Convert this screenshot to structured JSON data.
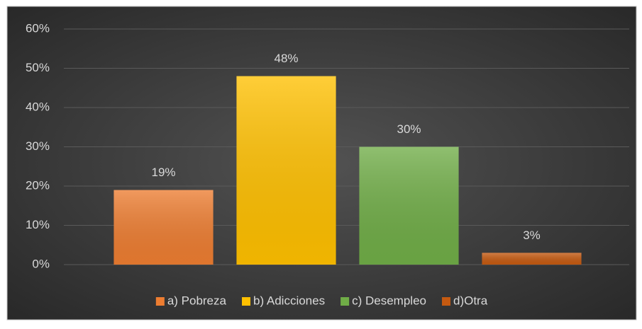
{
  "chart_data": {
    "type": "bar",
    "categories": [
      "a) Pobreza",
      "b) Adicciones",
      "c) Desempleo",
      "d)Otra"
    ],
    "values": [
      19,
      48,
      30,
      3
    ],
    "value_labels": [
      "19%",
      "48%",
      "30%",
      "3%"
    ],
    "colors": [
      "#ed7d31",
      "#ffc000",
      "#70ad47",
      "#c55a11"
    ],
    "ylim": [
      0,
      60
    ],
    "yticks": [
      {
        "value": 0,
        "label": "0%"
      },
      {
        "value": 10,
        "label": "10%"
      },
      {
        "value": 20,
        "label": "20%"
      },
      {
        "value": 30,
        "label": "30%"
      },
      {
        "value": 40,
        "label": "40%"
      },
      {
        "value": 50,
        "label": "50%"
      },
      {
        "value": 60,
        "label": "60%"
      }
    ],
    "grid": true,
    "legend": "bottom"
  }
}
